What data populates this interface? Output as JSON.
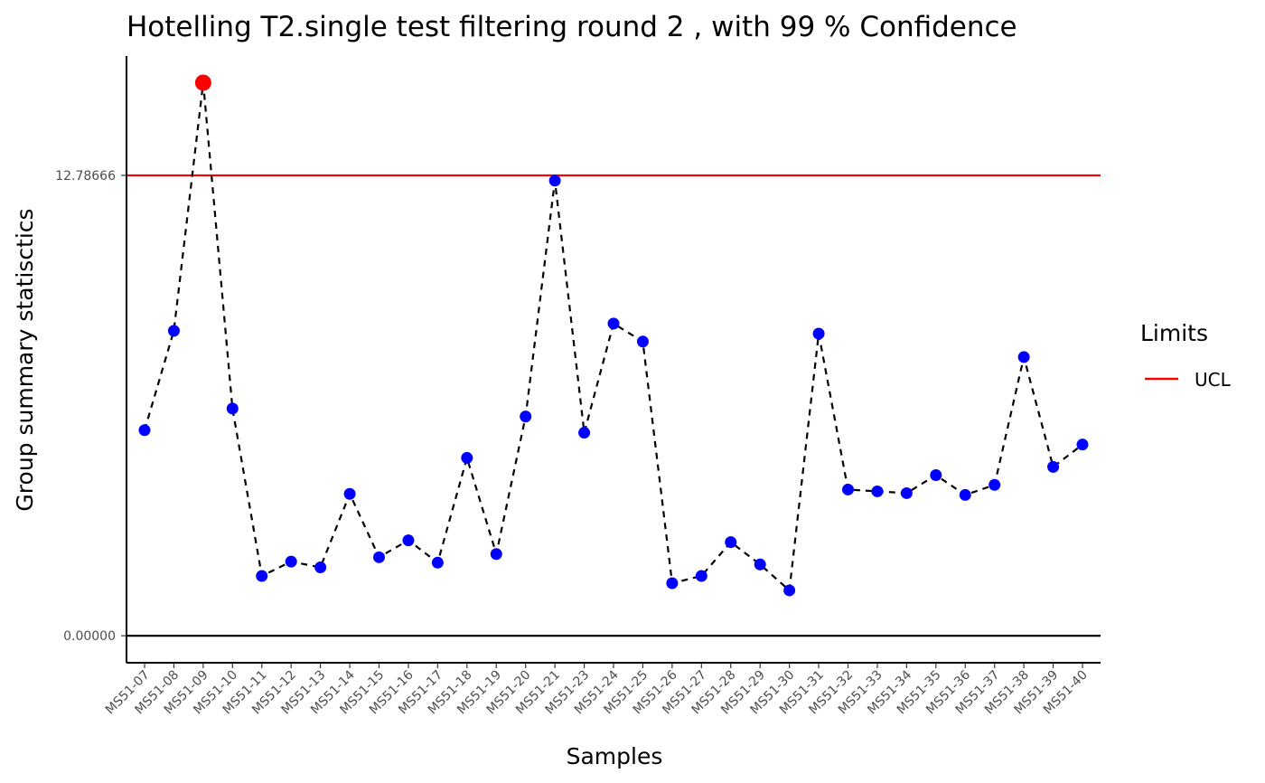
{
  "chart_data": {
    "type": "line",
    "title": "Hotelling  T2.single  test filtering round  2 , with  99 % Confidence",
    "xlabel": "Samples",
    "ylabel": "Group summary statisctics",
    "categories": [
      "MS51-07",
      "MS51-08",
      "MS51-09",
      "MS51-10",
      "MS51-11",
      "MS51-12",
      "MS51-13",
      "MS51-14",
      "MS51-15",
      "MS51-16",
      "MS51-17",
      "MS51-18",
      "MS51-19",
      "MS51-20",
      "MS51-21",
      "MS51-23",
      "MS51-24",
      "MS51-25",
      "MS51-26",
      "MS51-27",
      "MS51-28",
      "MS51-29",
      "MS51-30",
      "MS51-31",
      "MS51-32",
      "MS51-33",
      "MS51-34",
      "MS51-35",
      "MS51-36",
      "MS51-37",
      "MS51-38",
      "MS51-39",
      "MS51-40"
    ],
    "values": [
      5.71,
      8.47,
      15.36,
      6.31,
      1.66,
      2.06,
      1.9,
      3.94,
      2.18,
      2.65,
      2.03,
      4.94,
      2.27,
      6.09,
      12.64,
      5.64,
      8.67,
      8.17,
      1.46,
      1.66,
      2.6,
      1.98,
      1.26,
      8.39,
      4.06,
      4.01,
      3.96,
      4.46,
      3.91,
      4.19,
      7.74,
      4.69,
      5.31
    ],
    "point_colors": [
      "#0000FF",
      "#0000FF",
      "#FF0000",
      "#0000FF",
      "#0000FF",
      "#0000FF",
      "#0000FF",
      "#0000FF",
      "#0000FF",
      "#0000FF",
      "#0000FF",
      "#0000FF",
      "#0000FF",
      "#0000FF",
      "#0000FF",
      "#0000FF",
      "#0000FF",
      "#0000FF",
      "#0000FF",
      "#0000FF",
      "#0000FF",
      "#0000FF",
      "#0000FF",
      "#0000FF",
      "#0000FF",
      "#0000FF",
      "#0000FF",
      "#0000FF",
      "#0000FF",
      "#0000FF",
      "#0000FF",
      "#0000FF",
      "#0000FF"
    ],
    "ylim": [
      -0.75,
      16.1
    ],
    "yticks": [
      0.0,
      12.78666
    ],
    "ytick_labels": [
      "0.00000",
      "12.78666"
    ],
    "ucl": 12.78666,
    "ucl_color": "#FF0000",
    "zero_line": 0.0,
    "line_style": "dashed",
    "line_color": "#000000",
    "grid": false,
    "legend": {
      "title": "Limits",
      "placement": "right",
      "entries": [
        {
          "label": "UCL",
          "color": "#FF0000"
        }
      ]
    }
  }
}
